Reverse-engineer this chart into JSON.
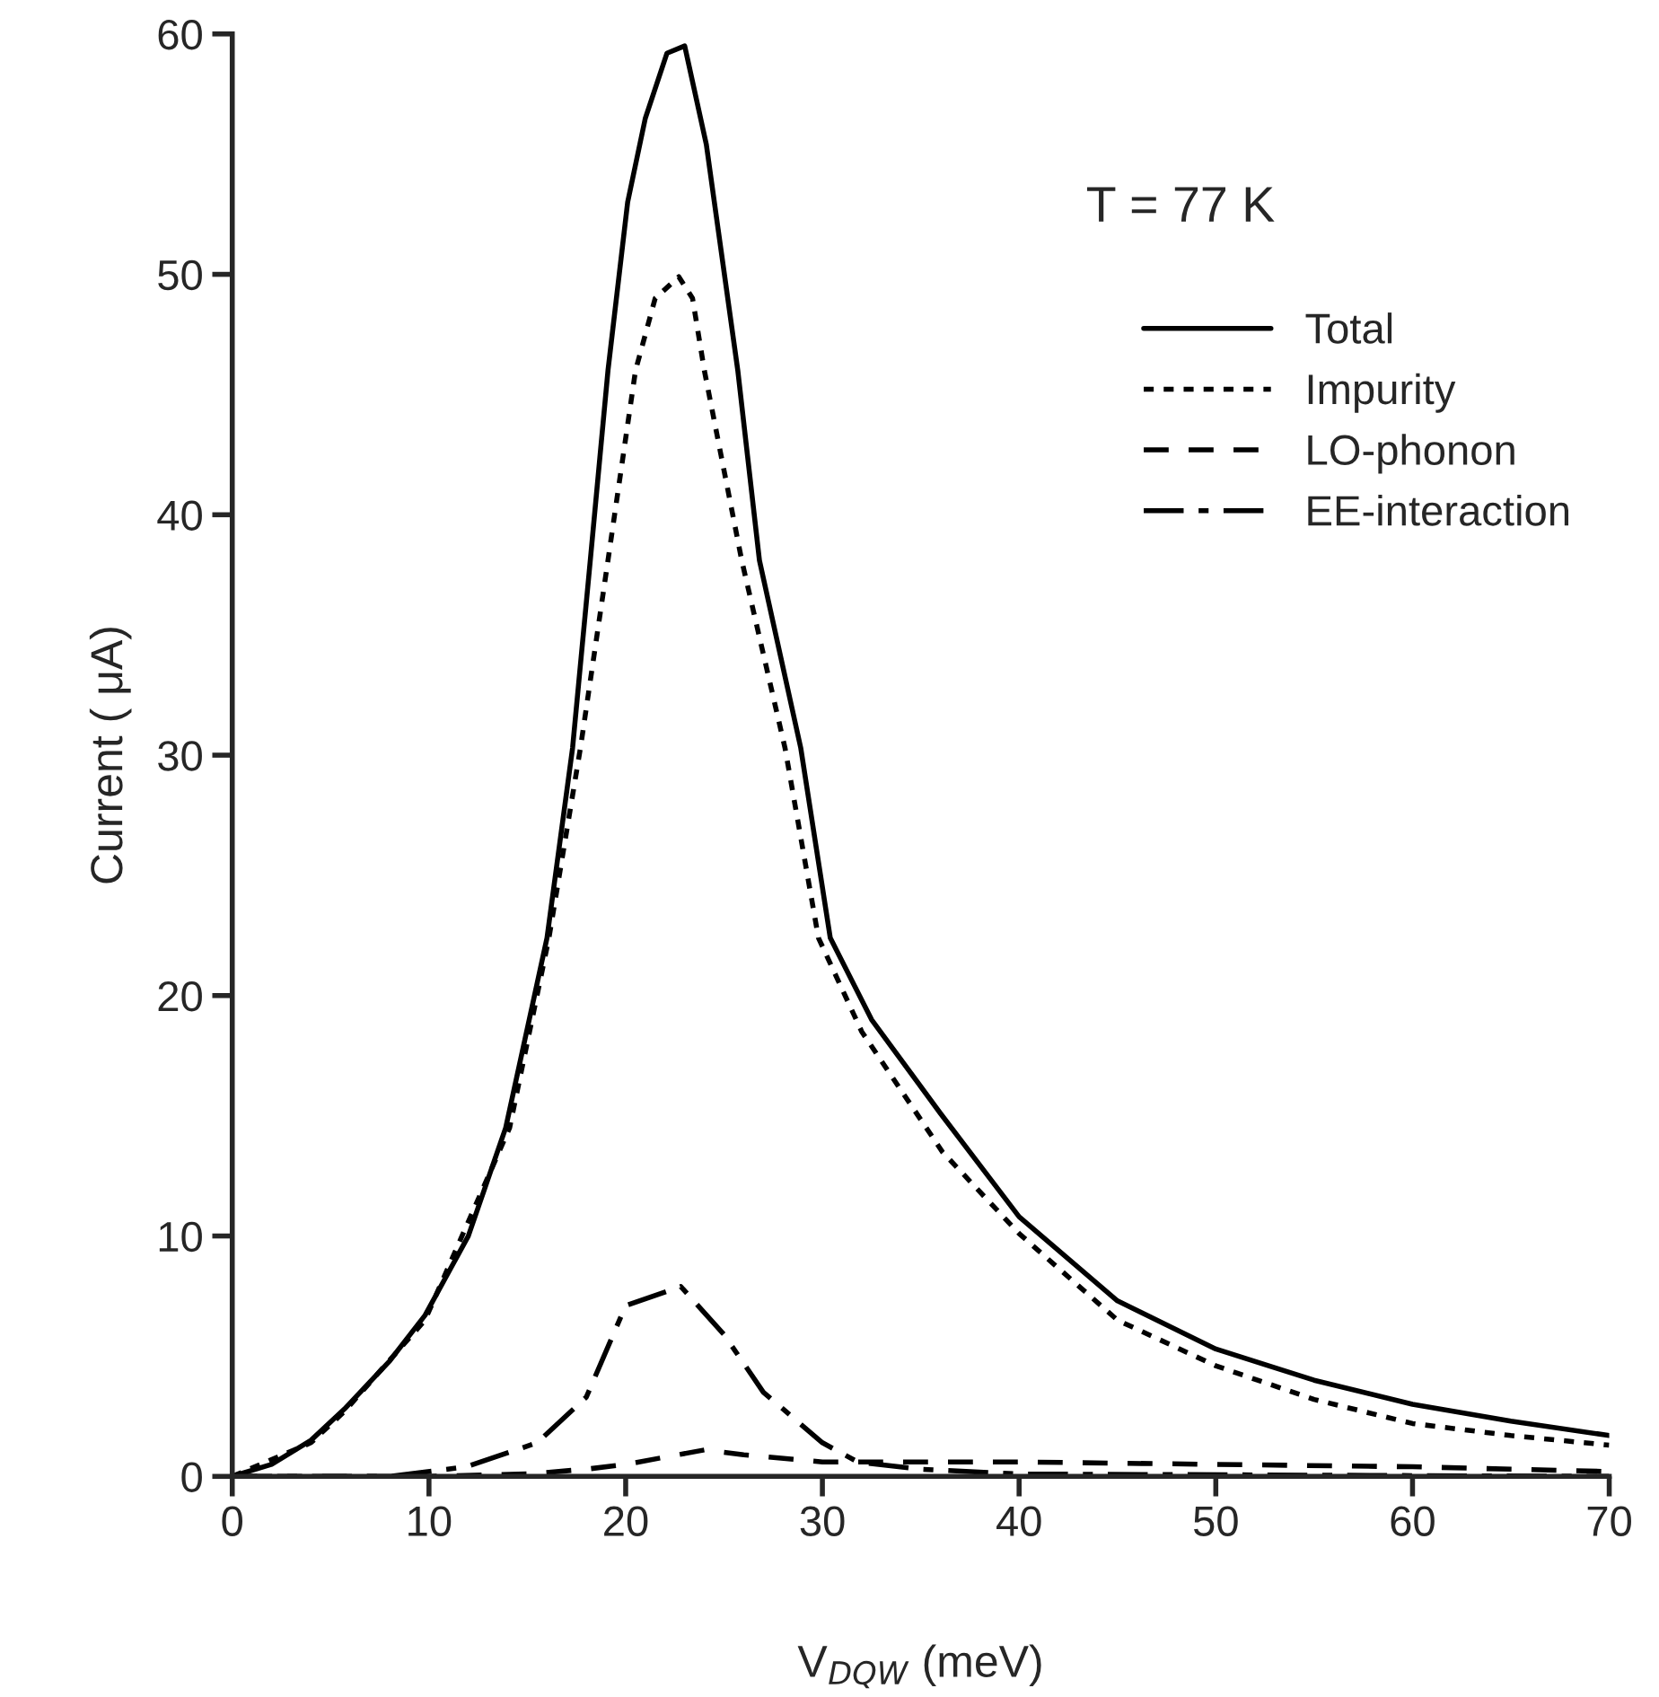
{
  "chart_data": {
    "type": "line",
    "xlabel": "V$_{DQW}$ (meV)",
    "ylabel": "Current ( μA)",
    "annotations": [
      "T = 77 K"
    ],
    "xlim": [
      0,
      70
    ],
    "ylim": [
      0,
      60
    ],
    "xticks": [
      0,
      10,
      20,
      30,
      40,
      50,
      60,
      70
    ],
    "yticks": [
      0,
      10,
      20,
      30,
      40,
      50,
      60
    ],
    "grid": false,
    "legend": "right",
    "marker": "none",
    "series": [
      {
        "name": "Total",
        "color": "#000000",
        "line_style": "solid",
        "x": [
          0,
          2,
          4,
          5.7,
          8,
          9.8,
          12,
          13.9,
          16,
          17.3,
          18.2,
          19.1,
          20.1,
          21,
          22.1,
          23,
          24.1,
          25.7,
          26.8,
          28.9,
          30.4,
          32.5,
          36,
          40,
          45,
          50,
          55,
          60,
          65,
          70
        ],
        "values": [
          0,
          0.5,
          1.5,
          2.8,
          4.8,
          6.7,
          10,
          14.5,
          22.4,
          30.3,
          38.1,
          46,
          53,
          56.5,
          59.2,
          59.5,
          55.4,
          46,
          38.1,
          30.3,
          22.4,
          19,
          15.1,
          10.8,
          7.3,
          5.3,
          4,
          3,
          2.3,
          1.7
        ]
      },
      {
        "name": "Impurity",
        "color": "#000000",
        "line_style": "dotted",
        "x": [
          0,
          4,
          5.7,
          9.8,
          14.1,
          16.1,
          17.7,
          19.1,
          20.5,
          21.5,
          22.7,
          23.4,
          24,
          25.9,
          28.1,
          29.8,
          32,
          36.1,
          40,
          45,
          50,
          55,
          60,
          65,
          70
        ],
        "values": [
          0,
          1.4,
          2.7,
          6.5,
          14.5,
          22.4,
          30.3,
          38.1,
          46,
          49,
          49.9,
          49,
          46,
          38.1,
          30.3,
          22.4,
          18.5,
          13.5,
          10.1,
          6.5,
          4.6,
          3.2,
          2.2,
          1.7,
          1.3
        ]
      },
      {
        "name": "LO-phonon",
        "color": "#000000",
        "line_style": "dashed",
        "x": [
          0,
          10,
          15,
          18,
          20,
          22,
          24,
          26,
          30,
          35,
          40,
          50,
          60,
          70
        ],
        "values": [
          0,
          0,
          0.1,
          0.3,
          0.5,
          0.8,
          1.1,
          0.9,
          0.6,
          0.6,
          0.6,
          0.5,
          0.4,
          0.2
        ]
      },
      {
        "name": "EE-interaction",
        "color": "#000000",
        "line_style": "dashdot",
        "x": [
          0,
          8,
          11.9,
          15.5,
          18,
          20,
          22.8,
          25,
          27,
          30,
          31.8,
          35,
          40,
          70
        ],
        "values": [
          0,
          0,
          0.4,
          1.4,
          3.3,
          7.1,
          7.9,
          5.9,
          3.5,
          1.4,
          0.6,
          0.3,
          0.1,
          0
        ]
      }
    ]
  }
}
